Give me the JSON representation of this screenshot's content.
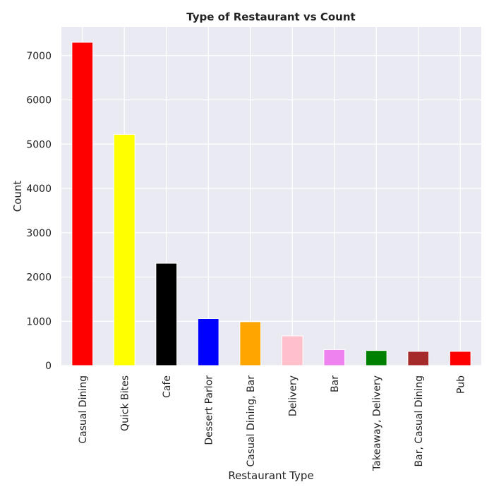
{
  "chart_data": {
    "type": "bar",
    "title": "Type of Restaurant vs Count",
    "xlabel": "Restaurant Type",
    "ylabel": "Count",
    "ylim": [
      0,
      7650
    ],
    "yticks": [
      0,
      1000,
      2000,
      3000,
      4000,
      5000,
      6000,
      7000
    ],
    "grid": true,
    "legend": "none",
    "background": "#eaeaf2",
    "categories": [
      "Casual Dining",
      "Quick Bites",
      "Cafe",
      "Dessert Parlor",
      "Casual Dining, Bar",
      "Delivery",
      "Bar",
      "Takeaway, Delivery",
      "Bar, Casual Dining",
      "Pub"
    ],
    "values": [
      7300,
      5220,
      2310,
      1060,
      990,
      670,
      360,
      340,
      320,
      320
    ],
    "colors": [
      "#ff0000",
      "#ffff00",
      "#000000",
      "#0000ff",
      "#ffa500",
      "#ffc0cb",
      "#ee82ee",
      "#008000",
      "#a52a2a",
      "#ff0000"
    ]
  }
}
